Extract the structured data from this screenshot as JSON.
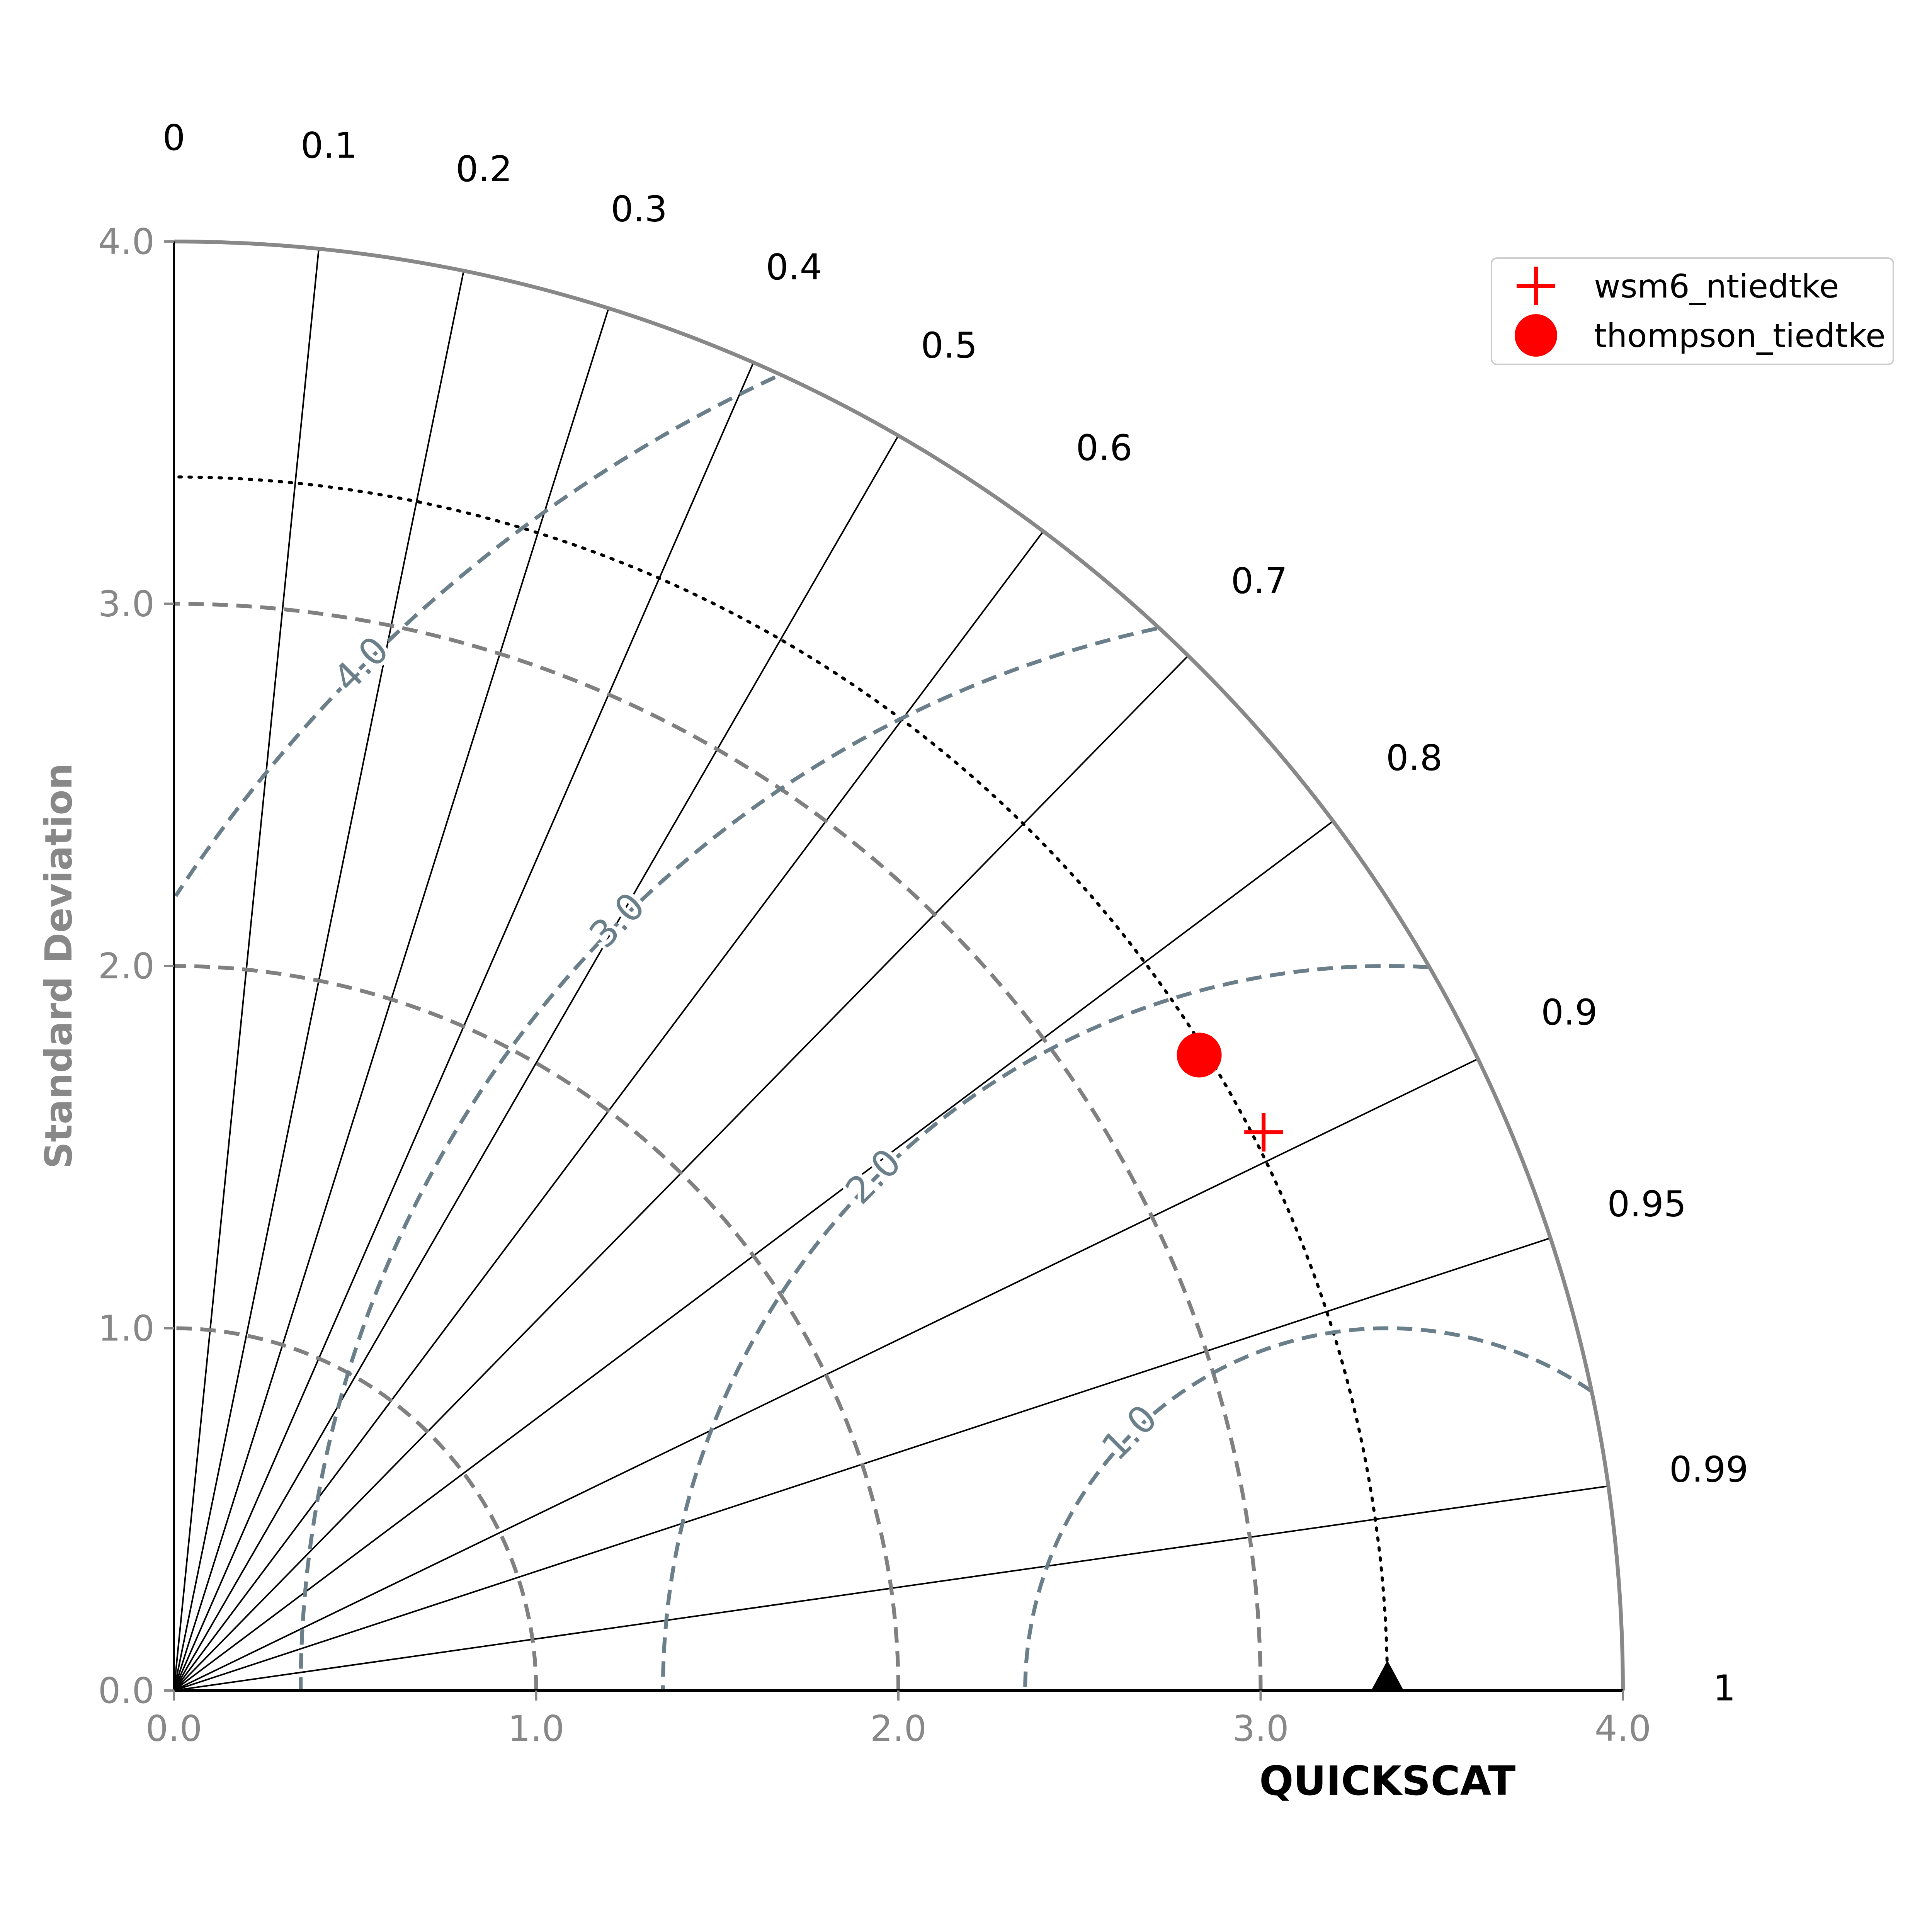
{
  "chart_data": {
    "type": "taylor_diagram",
    "reference": {
      "name": "QUICKSCAT",
      "std": 3.35
    },
    "ylabel": "Standard Deviation",
    "xlabel": "QUICKSCAT",
    "std_range": [
      0,
      4.0
    ],
    "std_ticks": [
      0.0,
      1.0,
      2.0,
      3.0,
      4.0
    ],
    "std_tick_labels": [
      "0.0",
      "1.0",
      "2.0",
      "3.0",
      "4.0"
    ],
    "corr_ticks": [
      0,
      0.1,
      0.2,
      0.3,
      0.4,
      0.5,
      0.6,
      0.7,
      0.8,
      0.9,
      0.95,
      0.99,
      1
    ],
    "corr_tick_labels": [
      "0",
      "0.1",
      "0.2",
      "0.3",
      "0.4",
      "0.5",
      "0.6",
      "0.7",
      "0.8",
      "0.9",
      "0.95",
      "0.99",
      "1"
    ],
    "rms_contours": [
      1.0,
      2.0,
      3.0,
      4.0
    ],
    "rms_contour_labels": [
      "1.0",
      "2.0",
      "3.0",
      "4.0"
    ],
    "std_dashed_arcs": [
      1.0,
      2.0,
      3.0
    ],
    "series": [
      {
        "name": "wsm6_ntiedtke",
        "marker": "plus",
        "color": "#ff0000",
        "std": 3.38,
        "correlation": 0.89
      },
      {
        "name": "thompson_tiedtke",
        "marker": "circle",
        "color": "#ff0000",
        "std": 3.33,
        "correlation": 0.85
      }
    ],
    "legend_position": "top-right",
    "colors": {
      "axis_gray": "#888888",
      "std_arc": "#808080",
      "rms_contour": "#6a7f8a",
      "ref_marker": "#000000"
    }
  }
}
